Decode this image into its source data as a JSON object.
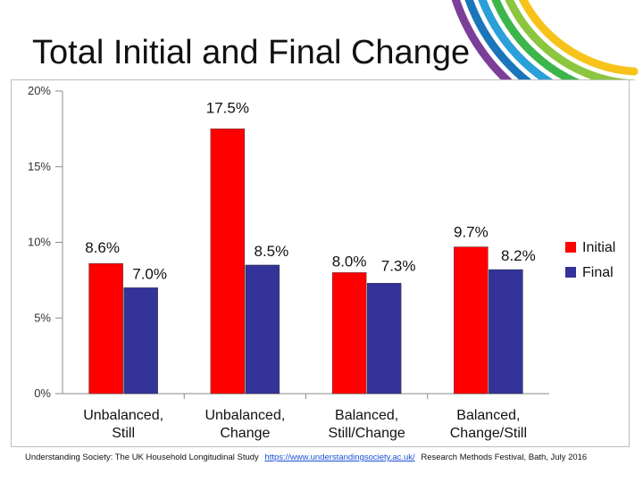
{
  "slide": {
    "title": "Total Initial and Final Change"
  },
  "footer": {
    "source": "Understanding Society: The UK Household Longitudinal Study",
    "link": "https://www.understandingsociety.ac.uk/",
    "event": "Research Methods Festival, Bath, July 2016"
  },
  "colors": {
    "initial": "#ff0000",
    "final": "#333399",
    "decor_arcs": [
      "#f7c31b",
      "#8cc63f",
      "#3cb54a",
      "#2b9fd9",
      "#1b75bb",
      "#7b3f98"
    ]
  },
  "chart_data": {
    "type": "bar",
    "title": "",
    "xlabel": "",
    "ylabel": "",
    "ylim": [
      0,
      20
    ],
    "y_ticks": [
      "0%",
      "5%",
      "10%",
      "15%",
      "20%"
    ],
    "categories": [
      [
        "Unbalanced,",
        "Still"
      ],
      [
        "Unbalanced,",
        "Change"
      ],
      [
        "Balanced,",
        "Still/Change"
      ],
      [
        "Balanced,",
        "Change/Still"
      ]
    ],
    "series": [
      {
        "name": "Initial",
        "color": "#ff0000",
        "values": [
          8.6,
          17.5,
          8.0,
          9.7
        ],
        "labels": [
          "8.6%",
          "17.5%",
          "8.0%",
          "9.7%"
        ]
      },
      {
        "name": "Final",
        "color": "#333399",
        "values": [
          7.0,
          8.5,
          7.3,
          8.2
        ],
        "labels": [
          "7.0%",
          "8.5%",
          "7.3%",
          "8.2%"
        ]
      }
    ],
    "grid": false,
    "legend_position": "right"
  }
}
